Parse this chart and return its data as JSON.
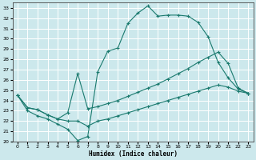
{
  "xlabel": "Humidex (Indice chaleur)",
  "bg_color": "#cce8ec",
  "line_color": "#1a7a6e",
  "grid_color": "#ffffff",
  "xlim": [
    -0.5,
    23.5
  ],
  "ylim": [
    20,
    33.5
  ],
  "xticks": [
    0,
    1,
    2,
    3,
    4,
    5,
    6,
    7,
    8,
    9,
    10,
    11,
    12,
    13,
    14,
    15,
    16,
    17,
    18,
    19,
    20,
    21,
    22,
    23
  ],
  "yticks": [
    20,
    21,
    22,
    23,
    24,
    25,
    26,
    27,
    28,
    29,
    30,
    31,
    32,
    33
  ],
  "curve1_x": [
    0,
    1,
    2,
    3,
    4,
    5,
    6,
    7,
    8,
    9,
    10,
    11,
    12,
    13,
    14,
    15,
    16,
    17,
    18,
    19,
    20,
    21,
    22,
    23
  ],
  "curve1_y": [
    24.5,
    23.0,
    22.5,
    22.2,
    21.7,
    21.2,
    20.1,
    20.5,
    26.8,
    28.8,
    29.1,
    31.5,
    32.5,
    33.2,
    32.2,
    32.3,
    32.3,
    32.2,
    31.6,
    30.2,
    27.7,
    26.2,
    25.1,
    24.7
  ],
  "curve2_x": [
    0,
    1,
    2,
    3,
    4,
    5,
    6,
    7,
    8,
    9,
    10,
    11,
    12,
    13,
    14,
    15,
    16,
    17,
    18,
    19,
    20,
    21,
    22,
    23
  ],
  "curve2_y": [
    24.5,
    23.3,
    23.1,
    22.6,
    22.2,
    22.8,
    26.6,
    23.2,
    23.4,
    23.7,
    24.0,
    24.4,
    24.8,
    25.2,
    25.6,
    26.1,
    26.6,
    27.1,
    27.7,
    28.2,
    28.7,
    27.6,
    25.2,
    24.7
  ],
  "curve3_x": [
    0,
    1,
    2,
    3,
    4,
    5,
    6,
    7,
    8,
    9,
    10,
    11,
    12,
    13,
    14,
    15,
    16,
    17,
    18,
    19,
    20,
    21,
    22,
    23
  ],
  "curve3_y": [
    24.5,
    23.3,
    23.1,
    22.6,
    22.2,
    22.0,
    22.0,
    21.5,
    22.0,
    22.2,
    22.5,
    22.8,
    23.1,
    23.4,
    23.7,
    24.0,
    24.3,
    24.6,
    24.9,
    25.2,
    25.5,
    25.3,
    24.9,
    24.7
  ]
}
